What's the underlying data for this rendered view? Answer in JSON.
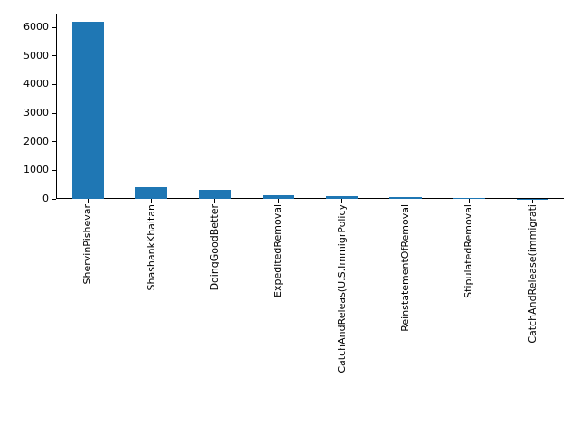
{
  "chart_data": {
    "type": "bar",
    "title": "",
    "xlabel": "",
    "ylabel": "",
    "categories": [
      "ShervinPishevar",
      "ShashankKhaitan",
      "DoingGoodBetter",
      "ExpeditedRemoval",
      "CatchAndReleas(U.S.ImmigrPolicy",
      "ReinstatementOfRemoval",
      "StipulatedRemoval",
      "CatchAndRelease(immigrati"
    ],
    "values": [
      6190,
      420,
      320,
      140,
      100,
      50,
      45,
      10
    ],
    "yticks": [
      0,
      1000,
      2000,
      3000,
      4000,
      5000,
      6000
    ],
    "ylim": [
      0,
      6474
    ],
    "bar_color": "#1f77b4",
    "axis_color": "#000000",
    "background_color": "#ffffff",
    "grid": false,
    "legend": null,
    "x_tick_label_rotation_deg": 90,
    "bar_width_fraction": 0.5
  }
}
